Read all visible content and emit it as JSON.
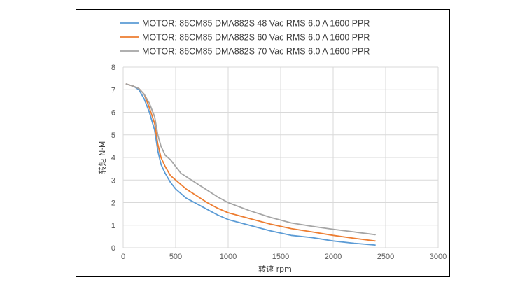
{
  "chart_data": {
    "type": "line",
    "title": "",
    "xlabel": "转速 rpm",
    "ylabel": "转矩 N·M",
    "xlim": [
      0,
      3000
    ],
    "ylim": [
      0,
      8
    ],
    "xticks": [
      0,
      500,
      1000,
      1500,
      2000,
      2500,
      3000
    ],
    "yticks": [
      0,
      1,
      2,
      3,
      4,
      5,
      6,
      7,
      8
    ],
    "grid": true,
    "legend_position": "top",
    "series": [
      {
        "name": "MOTOR: 86CM85 DMA882S 48 Vac  RMS  6.0 A  1600 PPR",
        "color": "#5B9BD5",
        "points": [
          [
            30,
            7.25
          ],
          [
            100,
            7.15
          ],
          [
            150,
            7.0
          ],
          [
            200,
            6.6
          ],
          [
            250,
            6.0
          ],
          [
            300,
            5.2
          ],
          [
            330,
            4.3
          ],
          [
            360,
            3.7
          ],
          [
            400,
            3.3
          ],
          [
            450,
            2.9
          ],
          [
            500,
            2.6
          ],
          [
            600,
            2.2
          ],
          [
            700,
            1.95
          ],
          [
            800,
            1.7
          ],
          [
            900,
            1.45
          ],
          [
            1000,
            1.25
          ],
          [
            1200,
            1.0
          ],
          [
            1400,
            0.75
          ],
          [
            1600,
            0.55
          ],
          [
            1800,
            0.45
          ],
          [
            2000,
            0.3
          ],
          [
            2200,
            0.2
          ],
          [
            2400,
            0.12
          ]
        ]
      },
      {
        "name": "MOTOR: 86CM85 DMA882S 60 Vac  RMS  6.0 A  1600 PPR",
        "color": "#ED7D31",
        "points": [
          [
            30,
            7.25
          ],
          [
            100,
            7.15
          ],
          [
            150,
            7.05
          ],
          [
            200,
            6.8
          ],
          [
            250,
            6.2
          ],
          [
            300,
            5.5
          ],
          [
            330,
            4.6
          ],
          [
            360,
            4.0
          ],
          [
            400,
            3.6
          ],
          [
            450,
            3.2
          ],
          [
            500,
            3.0
          ],
          [
            550,
            2.8
          ],
          [
            600,
            2.6
          ],
          [
            700,
            2.3
          ],
          [
            800,
            2.0
          ],
          [
            900,
            1.75
          ],
          [
            1000,
            1.55
          ],
          [
            1200,
            1.3
          ],
          [
            1400,
            1.05
          ],
          [
            1600,
            0.85
          ],
          [
            1800,
            0.7
          ],
          [
            2000,
            0.55
          ],
          [
            2200,
            0.42
          ],
          [
            2400,
            0.3
          ]
        ]
      },
      {
        "name": "MOTOR: 86CM85 DMA882S 70 Vac  RMS  6.0 A  1600 PPR",
        "color": "#A5A5A5",
        "points": [
          [
            30,
            7.25
          ],
          [
            100,
            7.15
          ],
          [
            150,
            7.05
          ],
          [
            200,
            6.8
          ],
          [
            250,
            6.4
          ],
          [
            300,
            5.8
          ],
          [
            330,
            5.0
          ],
          [
            360,
            4.5
          ],
          [
            400,
            4.1
          ],
          [
            450,
            3.9
          ],
          [
            500,
            3.6
          ],
          [
            550,
            3.3
          ],
          [
            600,
            3.15
          ],
          [
            700,
            2.85
          ],
          [
            800,
            2.55
          ],
          [
            900,
            2.25
          ],
          [
            1000,
            2.0
          ],
          [
            1200,
            1.65
          ],
          [
            1400,
            1.35
          ],
          [
            1600,
            1.1
          ],
          [
            1800,
            0.95
          ],
          [
            2000,
            0.82
          ],
          [
            2200,
            0.7
          ],
          [
            2400,
            0.58
          ]
        ]
      }
    ]
  }
}
